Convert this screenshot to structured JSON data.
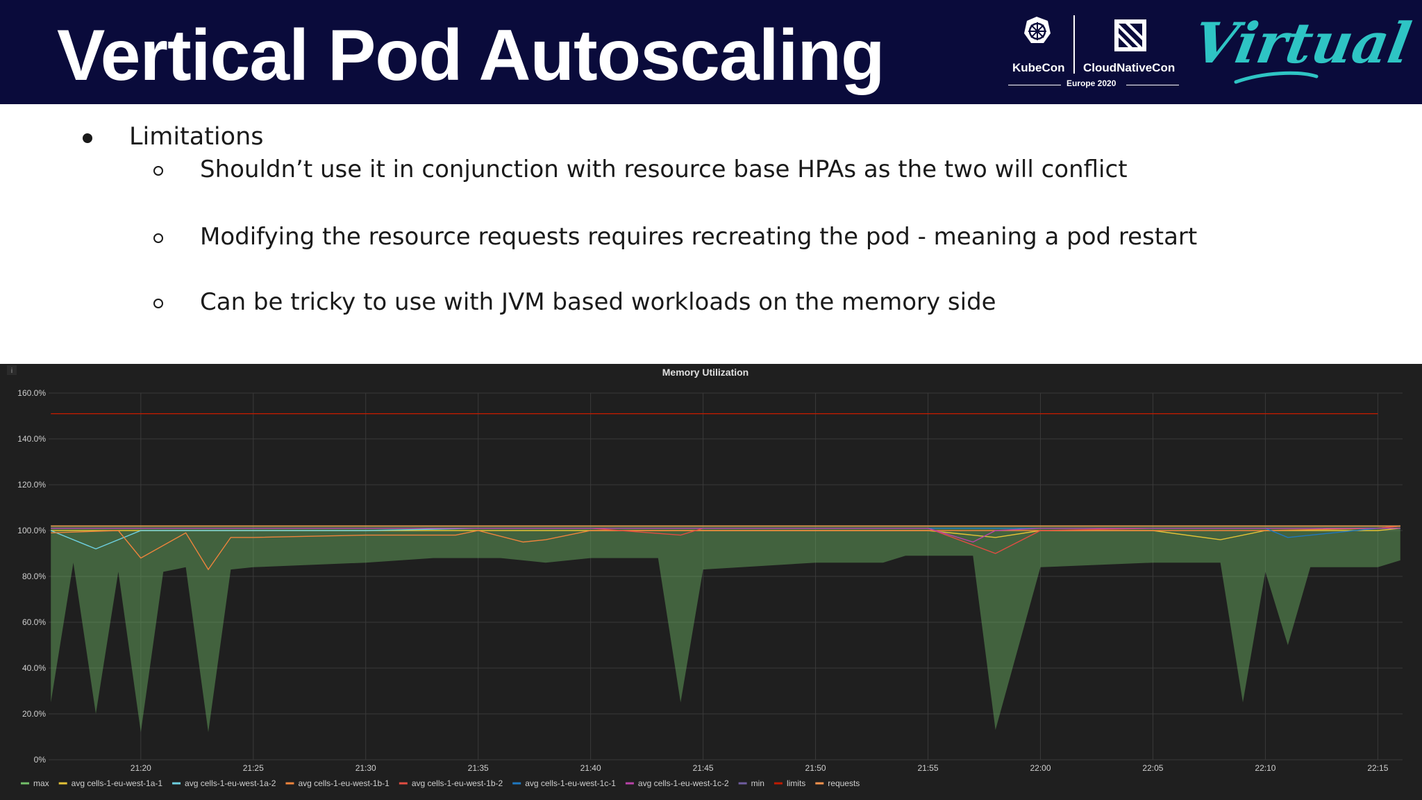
{
  "slide": {
    "title": "Vertical Pod Autoscaling",
    "logos": {
      "kubecon": "KubeCon",
      "cloudnativecon": "CloudNativeCon",
      "edition": "Europe 2020",
      "virtual": "Virtual"
    },
    "bullet": "Limitations",
    "sub_bullets": [
      "Shouldn’t use it in conjunction with resource base HPAs as the two will conflict",
      "Modifying the resource requests requires recreating the pod - meaning a pod restart",
      "Can be tricky to use with JVM based workloads on the memory side"
    ],
    "colors": {
      "header_bg": "#0a0b3b",
      "accent_virtual": "#2ec4c4",
      "chart_bg": "#1f1f1f"
    },
    "icons": [
      "kubernetes-helm-icon",
      "cncf-icon",
      "info-icon"
    ]
  },
  "chart_data": {
    "type": "area",
    "title": "Memory Utilization",
    "xlabel": "",
    "ylabel": "",
    "x_tick_labels": [
      "21:20",
      "21:25",
      "21:30",
      "21:35",
      "21:40",
      "21:45",
      "21:50",
      "21:55",
      "22:00",
      "22:05",
      "22:10",
      "22:15"
    ],
    "y_tick_labels": [
      "160.0%",
      "140.0%",
      "120.0%",
      "100.0%",
      "80.0%",
      "60.0%",
      "40.0%",
      "20.0%",
      "0%"
    ],
    "ylim": [
      0,
      160
    ],
    "x_minutes_range": [
      "21:16",
      "22:16"
    ],
    "grid": true,
    "legend_position": "bottom",
    "series": [
      {
        "name": "max",
        "color": "#73bf69",
        "style": "line",
        "x": [
          "21:16",
          "21:20",
          "21:25",
          "21:30",
          "21:35",
          "21:40",
          "21:45",
          "21:50",
          "21:55",
          "22:00",
          "22:05",
          "22:10",
          "22:15",
          "22:16"
        ],
        "values": [
          102,
          102,
          102,
          102,
          102,
          102,
          102,
          102,
          102,
          102,
          102,
          102,
          102,
          102
        ]
      },
      {
        "name": "avg cells-1-eu-west-1a-1",
        "color": "#e5c337",
        "style": "line",
        "x": [
          "21:16",
          "21:20",
          "21:25",
          "21:30",
          "21:35",
          "21:40",
          "21:45",
          "21:50",
          "21:55",
          "21:58",
          "22:00",
          "22:05",
          "22:08",
          "22:10",
          "22:15",
          "22:16"
        ],
        "values": [
          100,
          100,
          100,
          100,
          100,
          100,
          100,
          100,
          100,
          97,
          100,
          100,
          96,
          100,
          100,
          101
        ]
      },
      {
        "name": "avg cells-1-eu-west-1a-2",
        "color": "#6ed0e0",
        "style": "line",
        "x": [
          "21:16",
          "21:18",
          "21:20",
          "21:25",
          "21:30",
          "21:35",
          "21:40",
          "21:45",
          "21:50",
          "21:55",
          "22:00",
          "22:05",
          "22:10",
          "22:15",
          "22:16"
        ],
        "values": [
          100,
          92,
          100,
          100,
          100,
          101,
          101,
          101,
          101,
          101,
          101,
          101,
          101,
          101,
          101
        ]
      },
      {
        "name": "avg cells-1-eu-west-1b-1",
        "color": "#ef843c",
        "style": "line",
        "x": [
          "21:16",
          "21:19",
          "21:20",
          "21:22",
          "21:23",
          "21:24",
          "21:25",
          "21:30",
          "21:34",
          "21:35",
          "21:37",
          "21:38",
          "21:40",
          "21:45",
          "21:50",
          "21:55",
          "22:00",
          "22:05",
          "22:10",
          "22:15",
          "22:16"
        ],
        "values": [
          99,
          100,
          88,
          99,
          83,
          97,
          97,
          98,
          98,
          100,
          95,
          96,
          100,
          100,
          100,
          100,
          100,
          100,
          100,
          101,
          102
        ]
      },
      {
        "name": "avg cells-1-eu-west-1b-2",
        "color": "#e24d42",
        "style": "line",
        "x": [
          "21:16",
          "21:20",
          "21:25",
          "21:30",
          "21:35",
          "21:40",
          "21:44",
          "21:45",
          "21:50",
          "21:55",
          "21:58",
          "22:00",
          "22:05",
          "22:10",
          "22:15",
          "22:16"
        ],
        "values": [
          101,
          101,
          101,
          101,
          101,
          101,
          98,
          101,
          101,
          101,
          90,
          100,
          101,
          101,
          101,
          102
        ]
      },
      {
        "name": "avg cells-1-eu-west-1c-1",
        "color": "#1f78c1",
        "style": "line",
        "x": [
          "21:16",
          "21:20",
          "21:25",
          "21:30",
          "21:35",
          "21:40",
          "21:45",
          "21:50",
          "21:55",
          "22:00",
          "22:05",
          "22:10",
          "22:11",
          "22:15",
          "22:16"
        ],
        "values": [
          101,
          101,
          101,
          101,
          101,
          101,
          101,
          101,
          101,
          101,
          101,
          101,
          97,
          101,
          101
        ]
      },
      {
        "name": "avg cells-1-eu-west-1c-2",
        "color": "#ba43a9",
        "style": "line",
        "x": [
          "21:16",
          "21:20",
          "21:25",
          "21:30",
          "21:35",
          "21:40",
          "21:45",
          "21:50",
          "21:55",
          "21:57",
          "21:58",
          "22:00",
          "22:05",
          "22:10",
          "22:15",
          "22:16"
        ],
        "values": [
          101,
          101,
          101,
          101,
          101,
          101,
          101,
          101,
          101,
          95,
          100,
          101,
          101,
          101,
          101,
          101
        ]
      },
      {
        "name": "min",
        "color": "#705da0",
        "style": "area",
        "x": [
          "21:16",
          "21:17",
          "21:18",
          "21:19",
          "21:20",
          "21:21",
          "21:22",
          "21:23",
          "21:24",
          "21:25",
          "21:30",
          "21:33",
          "21:36",
          "21:38",
          "21:40",
          "21:43",
          "21:44",
          "21:45",
          "21:50",
          "21:53",
          "21:54",
          "21:57",
          "21:58",
          "22:00",
          "22:05",
          "22:08",
          "22:09",
          "22:10",
          "22:11",
          "22:12",
          "22:15",
          "22:16"
        ],
        "values": [
          25,
          86,
          20,
          82,
          12,
          82,
          84,
          12,
          83,
          84,
          86,
          88,
          88,
          86,
          88,
          88,
          25,
          83,
          86,
          86,
          89,
          89,
          13,
          84,
          86,
          86,
          25,
          82,
          50,
          84,
          84,
          87
        ]
      },
      {
        "name": "limits",
        "color": "#bf1b00",
        "style": "line",
        "x": [
          "21:16",
          "22:15"
        ],
        "values": [
          151,
          151
        ]
      },
      {
        "name": "requests",
        "color": "#f9934e",
        "style": "line",
        "x": [
          "21:16",
          "22:16"
        ],
        "values": [
          102,
          102
        ]
      }
    ]
  }
}
